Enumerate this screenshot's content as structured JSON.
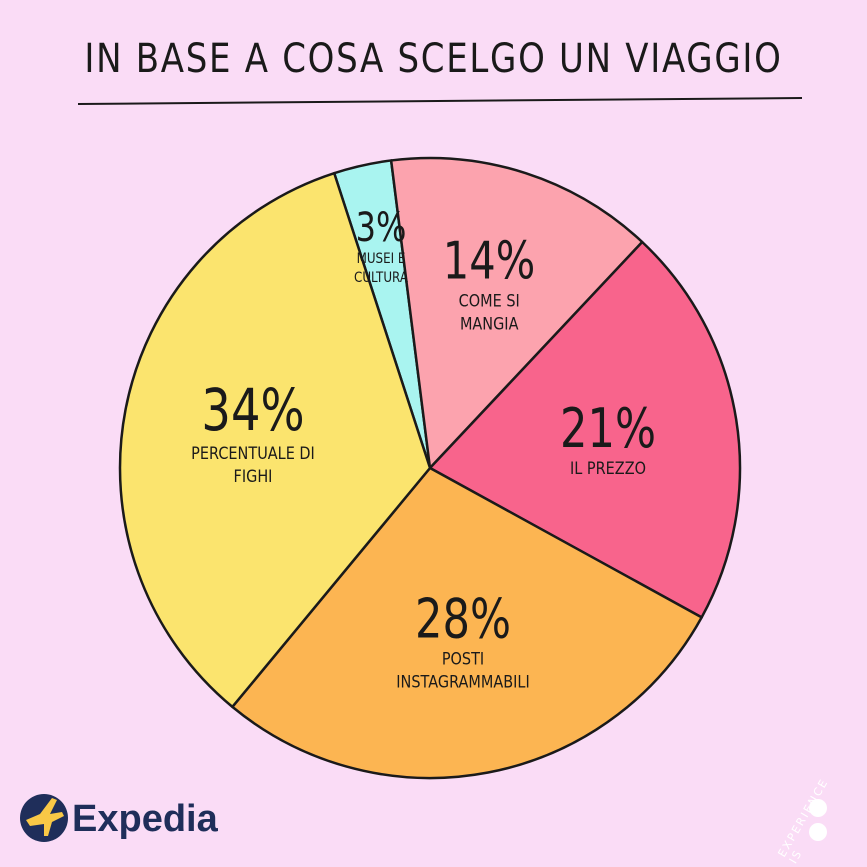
{
  "chart_data": {
    "type": "pie",
    "title": "IN BASE A COSA SCELGO UN VIAGGIO",
    "categories": [
      "MUSEI E CULTURA",
      "COME SI MANGIA",
      "IL PREZZO",
      "POSTI INSTAGRAMMABILI",
      "PERCENTUALE DI FIGHI"
    ],
    "values": [
      3,
      14,
      21,
      28,
      34
    ],
    "value_labels": [
      "3%",
      "14%",
      "21%",
      "28%",
      "34%"
    ],
    "colors": [
      "#a9f4f0",
      "#fca3ae",
      "#f8648c",
      "#fcb552",
      "#fbe46e"
    ]
  },
  "footer": {
    "brand": "Expedia",
    "tagline": "EXPERIENCE IS"
  }
}
